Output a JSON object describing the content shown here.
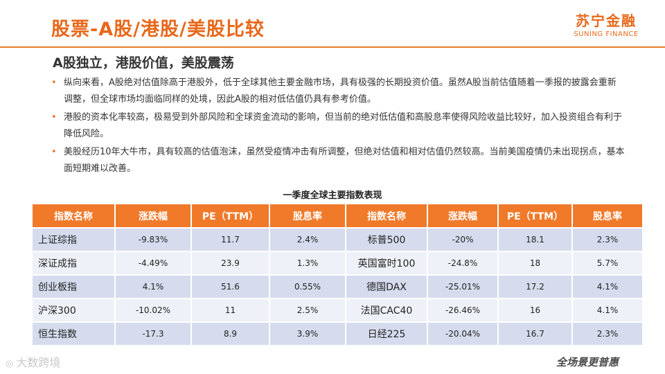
{
  "header": {
    "title": "股票-A股/港股/美股比较",
    "logo_cn": "苏宁金融",
    "logo_en": "SUNING FINANCE"
  },
  "subtitle": "A股独立，港股价值，美股震荡",
  "bullets": [
    "纵向来看，A股绝对估值除高于港股外，低于全球其他主要金融市场，具有极强的长期投资价值。虽然A股当前估值随着一季报的披露会重新调整，但全球市场均面临同样的处境，因此A股的相对低估值仍具有参考价值。",
    "港股的资本化率较高，极易受到外部风险和全球资金流动的影响，但当前的绝对低估值和高股息率使得风险收益比较好，加入投资组合有利于降低风险。",
    "美股经历10年大牛市，具有较高的估值泡沫，虽然受疫情冲击有所调整，但绝对估值和相对估值仍然较高。当前美国疫情仍未出现拐点，基本面短期难以改善。"
  ],
  "table": {
    "caption": "一季度全球主要指数表现",
    "headers": [
      "指数名称",
      "涨跌幅",
      "PE（TTM）",
      "股息率",
      "指数名称",
      "涨跌幅",
      "PE（TTM）",
      "股息率"
    ],
    "rows": [
      [
        "上证综指",
        "-9.83%",
        "11.7",
        "2.4%",
        "标普500",
        "-20%",
        "18.1",
        "2.3%"
      ],
      [
        "深证成指",
        "-4.49%",
        "23.9",
        "1.3%",
        "英国富时100",
        "-24.8%",
        "18",
        "5.7%"
      ],
      [
        "创业板指",
        "4.1%",
        "51.6",
        "0.55%",
        "德国DAX",
        "-25.01%",
        "17.2",
        "4.1%"
      ],
      [
        "沪深300",
        "-10.02%",
        "11",
        "2.5%",
        "法国CAC40",
        "-26.46%",
        "16",
        "4.1%"
      ],
      [
        "恒生指数",
        "-17.3",
        "8.9",
        "3.9%",
        "日经225",
        "-20.04%",
        "16.7",
        "2.3%"
      ]
    ]
  },
  "watermarks": {
    "left": "大数跨境",
    "right": "全场景更普惠"
  },
  "colors": {
    "accent": "#e8681b",
    "header_fill": "#f07a2a",
    "row_dark": "#d6dcee",
    "row_light": "#eef1f7"
  }
}
